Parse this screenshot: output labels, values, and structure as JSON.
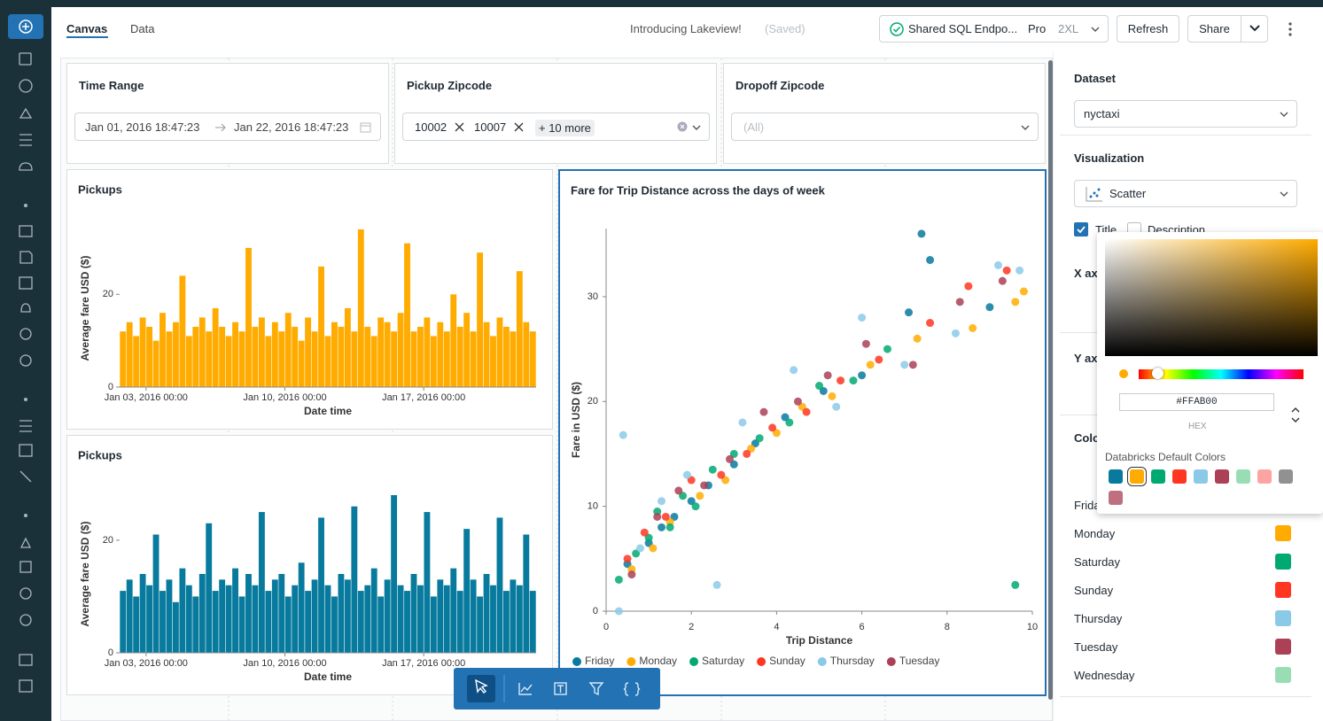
{
  "header": {
    "tabs": [
      "Canvas",
      "Data"
    ],
    "notice": "Introducing Lakeview!",
    "status": "(Saved)",
    "warehouse": "Shared SQL Endpo...",
    "tier": "Pro",
    "size": "2XL",
    "refresh": "Refresh",
    "share": "Share"
  },
  "filters": {
    "time_range": {
      "title": "Time Range",
      "start": "Jan 01, 2016 18:47:23",
      "end": "Jan 22, 2016 18:47:23"
    },
    "pickup": {
      "title": "Pickup Zipcode",
      "chips": [
        "10002",
        "10007"
      ],
      "more": "+ 10 more"
    },
    "dropoff": {
      "title": "Dropoff Zipcode",
      "placeholder": "(All)"
    }
  },
  "chart_data": [
    {
      "type": "bar",
      "title": "Pickups",
      "x_label": "Date time",
      "y_label": "Average fare USD ($)",
      "color": "#FFAB00",
      "x": [
        "2016-01-01T20:00",
        "2016-01-02T04:00",
        "2016-01-02T12:00",
        "2016-01-02T20:00",
        "2016-01-03T04:00",
        "2016-01-03T12:00",
        "2016-01-03T20:00",
        "2016-01-04T04:00",
        "2016-01-04T12:00",
        "2016-01-04T20:00",
        "2016-01-05T04:00",
        "2016-01-05T12:00",
        "2016-01-05T20:00",
        "2016-01-06T04:00",
        "2016-01-06T12:00",
        "2016-01-06T20:00",
        "2016-01-07T04:00",
        "2016-01-07T12:00",
        "2016-01-07T20:00",
        "2016-01-08T04:00",
        "2016-01-08T12:00",
        "2016-01-08T20:00",
        "2016-01-09T04:00",
        "2016-01-09T12:00",
        "2016-01-09T20:00",
        "2016-01-10T04:00",
        "2016-01-10T12:00",
        "2016-01-10T20:00",
        "2016-01-11T04:00",
        "2016-01-11T12:00",
        "2016-01-11T20:00",
        "2016-01-12T04:00",
        "2016-01-12T12:00",
        "2016-01-12T20:00",
        "2016-01-13T04:00",
        "2016-01-13T12:00",
        "2016-01-13T20:00",
        "2016-01-14T04:00",
        "2016-01-14T12:00",
        "2016-01-14T20:00",
        "2016-01-15T04:00",
        "2016-01-15T12:00",
        "2016-01-15T20:00",
        "2016-01-16T04:00",
        "2016-01-16T12:00",
        "2016-01-16T20:00",
        "2016-01-17T04:00",
        "2016-01-17T12:00",
        "2016-01-17T20:00",
        "2016-01-18T04:00",
        "2016-01-18T12:00",
        "2016-01-18T20:00",
        "2016-01-19T04:00",
        "2016-01-19T12:00",
        "2016-01-19T20:00",
        "2016-01-20T04:00",
        "2016-01-20T12:00",
        "2016-01-20T20:00",
        "2016-01-21T04:00",
        "2016-01-21T12:00",
        "2016-01-21T20:00",
        "2016-01-22T04:00",
        "2016-01-22T12:00"
      ],
      "values": [
        12,
        14,
        11,
        15,
        13,
        10,
        16,
        12,
        14,
        24,
        11,
        13,
        15,
        12,
        17,
        13,
        11,
        14,
        12,
        30,
        13,
        15,
        11,
        14,
        12,
        16,
        13,
        10,
        15,
        12,
        26,
        11,
        14,
        13,
        17,
        12,
        34,
        13,
        11,
        15,
        14,
        12,
        16,
        31,
        12,
        13,
        15,
        11,
        14,
        12,
        20,
        13,
        16,
        12,
        29,
        14,
        11,
        15,
        13,
        12,
        25,
        14,
        12
      ],
      "xlim": [
        "2016-01-01T16:00",
        "2016-01-22T16:00"
      ],
      "xticks": [
        {
          "value": "2016-01-03T00:00",
          "label": "Jan 03, 2016 00:00"
        },
        {
          "value": "2016-01-10T00:00",
          "label": "Jan 10, 2016 00:00"
        },
        {
          "value": "2016-01-17T00:00",
          "label": "Jan 17, 2016 00:00"
        }
      ],
      "ylim": [
        0,
        34
      ],
      "yticks": [
        0,
        20
      ]
    },
    {
      "type": "bar",
      "title": "Pickups",
      "x_label": "Date time",
      "y_label": "Average fare USD ($)",
      "color": "#077A9D",
      "x": [
        "2016-01-01T20:00",
        "2016-01-02T04:00",
        "2016-01-02T12:00",
        "2016-01-02T20:00",
        "2016-01-03T04:00",
        "2016-01-03T12:00",
        "2016-01-03T20:00",
        "2016-01-04T04:00",
        "2016-01-04T12:00",
        "2016-01-04T20:00",
        "2016-01-05T04:00",
        "2016-01-05T12:00",
        "2016-01-05T20:00",
        "2016-01-06T04:00",
        "2016-01-06T12:00",
        "2016-01-06T20:00",
        "2016-01-07T04:00",
        "2016-01-07T12:00",
        "2016-01-07T20:00",
        "2016-01-08T04:00",
        "2016-01-08T12:00",
        "2016-01-08T20:00",
        "2016-01-09T04:00",
        "2016-01-09T12:00",
        "2016-01-09T20:00",
        "2016-01-10T04:00",
        "2016-01-10T12:00",
        "2016-01-10T20:00",
        "2016-01-11T04:00",
        "2016-01-11T12:00",
        "2016-01-11T20:00",
        "2016-01-12T04:00",
        "2016-01-12T12:00",
        "2016-01-12T20:00",
        "2016-01-13T04:00",
        "2016-01-13T12:00",
        "2016-01-13T20:00",
        "2016-01-14T04:00",
        "2016-01-14T12:00",
        "2016-01-14T20:00",
        "2016-01-15T04:00",
        "2016-01-15T12:00",
        "2016-01-15T20:00",
        "2016-01-16T04:00",
        "2016-01-16T12:00",
        "2016-01-16T20:00",
        "2016-01-17T04:00",
        "2016-01-17T12:00",
        "2016-01-17T20:00",
        "2016-01-18T04:00",
        "2016-01-18T12:00",
        "2016-01-18T20:00",
        "2016-01-19T04:00",
        "2016-01-19T12:00",
        "2016-01-19T20:00",
        "2016-01-20T04:00",
        "2016-01-20T12:00",
        "2016-01-20T20:00",
        "2016-01-21T04:00",
        "2016-01-21T12:00",
        "2016-01-21T20:00",
        "2016-01-22T04:00",
        "2016-01-22T12:00"
      ],
      "values": [
        11,
        13,
        10,
        14,
        12,
        21,
        11,
        13,
        9,
        15,
        12,
        10,
        14,
        23,
        11,
        13,
        12,
        15,
        10,
        14,
        12,
        25,
        11,
        13,
        14,
        10,
        12,
        16,
        11,
        13,
        24,
        12,
        10,
        14,
        13,
        26,
        11,
        12,
        15,
        10,
        13,
        28,
        12,
        11,
        14,
        12,
        25,
        10,
        13,
        12,
        15,
        11,
        22,
        13,
        10,
        14,
        12,
        24,
        11,
        13,
        12,
        21,
        11
      ],
      "xlim": [
        "2016-01-01T16:00",
        "2016-01-22T16:00"
      ],
      "xticks": [
        {
          "value": "2016-01-03T00:00",
          "label": "Jan 03, 2016 00:00"
        },
        {
          "value": "2016-01-10T00:00",
          "label": "Jan 10, 2016 00:00"
        },
        {
          "value": "2016-01-17T00:00",
          "label": "Jan 17, 2016 00:00"
        }
      ],
      "ylim": [
        0,
        28
      ],
      "yticks": [
        0,
        20
      ]
    },
    {
      "type": "scatter",
      "title": "Fare for Trip Distance across the days of week",
      "x_label": "Trip Distance",
      "y_label": "Fare in USD ($)",
      "xlim": [
        0,
        10
      ],
      "xticks": [
        0,
        2,
        4,
        6,
        8,
        10
      ],
      "ylim": [
        0,
        36.5
      ],
      "yticks": [
        0,
        10,
        20,
        30
      ],
      "series": [
        {
          "name": "Friday",
          "color": "#077A9D",
          "x": [
            0.5,
            1.0,
            1.3,
            1.6,
            2.0,
            2.4,
            3.0,
            3.5,
            4.2,
            5.1,
            6.0,
            7.1,
            7.4,
            7.6,
            9.0
          ],
          "values": [
            4.5,
            6.5,
            8.0,
            9.0,
            10.5,
            12.0,
            14.0,
            16.0,
            18.5,
            21.0,
            22.5,
            28.5,
            36.0,
            33.5,
            29.0
          ]
        },
        {
          "name": "Monday",
          "color": "#FFAB00",
          "x": [
            0.6,
            1.1,
            1.5,
            2.2,
            2.8,
            3.4,
            4.0,
            4.6,
            5.3,
            6.2,
            7.3,
            8.6,
            9.6,
            9.8
          ],
          "values": [
            4.0,
            6.0,
            8.5,
            11.0,
            12.5,
            15.5,
            17.0,
            19.5,
            20.5,
            23.5,
            26.0,
            27.0,
            29.5,
            30.5
          ]
        },
        {
          "name": "Saturday",
          "color": "#00A972",
          "x": [
            0.3,
            0.7,
            1.0,
            1.2,
            1.5,
            1.8,
            2.1,
            2.5,
            3.0,
            3.6,
            4.3,
            5.0,
            5.8,
            6.6,
            9.6
          ],
          "values": [
            3.0,
            5.5,
            7.0,
            9.5,
            8.0,
            11.0,
            10.0,
            13.5,
            15.0,
            16.5,
            18.0,
            21.5,
            22.0,
            25.0,
            2.5
          ]
        },
        {
          "name": "Sunday",
          "color": "#FF3621",
          "x": [
            0.5,
            0.9,
            1.4,
            2.0,
            2.7,
            3.3,
            3.9,
            4.7,
            5.5,
            6.4,
            7.6,
            8.5,
            9.4
          ],
          "values": [
            5.0,
            7.5,
            9.0,
            12.5,
            13.0,
            15.0,
            17.5,
            19.0,
            22.0,
            24.0,
            27.5,
            31.0,
            32.5
          ]
        },
        {
          "name": "Thursday",
          "color": "#8BCAE7",
          "x": [
            0.3,
            0.4,
            0.8,
            1.3,
            1.9,
            2.6,
            3.2,
            4.4,
            5.4,
            6.0,
            7.0,
            8.2,
            9.2,
            9.7
          ],
          "values": [
            0.0,
            16.8,
            6.0,
            10.5,
            13.0,
            2.5,
            18.0,
            23.0,
            19.5,
            28.0,
            23.5,
            26.5,
            33.0,
            32.5
          ]
        },
        {
          "name": "Tuesday",
          "color": "#AB4057",
          "x": [
            0.6,
            1.2,
            1.7,
            2.3,
            2.9,
            3.7,
            4.5,
            5.2,
            6.1,
            7.2,
            8.3,
            9.3
          ],
          "values": [
            3.5,
            9.0,
            11.5,
            12.0,
            14.5,
            19.0,
            20.0,
            22.5,
            25.5,
            23.5,
            29.5,
            31.5
          ]
        }
      ]
    }
  ],
  "settings": {
    "dataset_label": "Dataset",
    "dataset": "nyctaxi",
    "visualization_label": "Visualization",
    "visualization": "Scatter",
    "title_option": "Title",
    "description_option": "Description",
    "x_axis_label": "X axis",
    "y_axis_label": "Y axis",
    "color_label": "Color",
    "color_assignments": [
      {
        "name": "Friday",
        "color": "#077A9D"
      },
      {
        "name": "Monday",
        "color": "#FFAB00"
      },
      {
        "name": "Saturday",
        "color": "#00A972"
      },
      {
        "name": "Sunday",
        "color": "#FF3621"
      },
      {
        "name": "Thursday",
        "color": "#8BCAE7"
      },
      {
        "name": "Tuesday",
        "color": "#AB4057"
      },
      {
        "name": "Wednesday",
        "color": "#99DDB4"
      }
    ]
  },
  "color_picker": {
    "hex": "#FFAB00",
    "hex_label": "HEX",
    "palette_title": "Databricks Default Colors",
    "swatches": [
      "#077A9D",
      "#FFAB00",
      "#00A972",
      "#FF3621",
      "#8BCAE7",
      "#AB4057",
      "#99DDB4",
      "#FCA4A1",
      "#919191",
      "#BF7080"
    ]
  }
}
